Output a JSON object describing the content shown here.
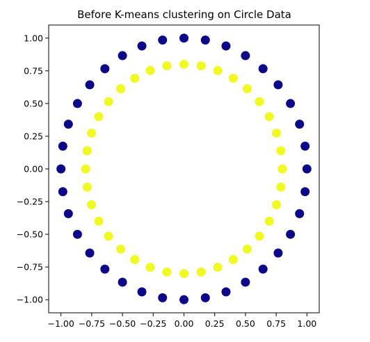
{
  "chart_data": {
    "type": "scatter",
    "title": "Before K-means clustering on Circle Data",
    "xlabel": "",
    "ylabel": "",
    "xlim": [
      -1.1,
      1.1
    ],
    "ylim": [
      -1.1,
      1.1
    ],
    "xticks": [
      -1.0,
      -0.75,
      -0.5,
      -0.25,
      0.0,
      0.25,
      0.5,
      0.75,
      1.0
    ],
    "xtick_labels": [
      "−1.00",
      "−0.75",
      "−0.50",
      "−0.25",
      "0.00",
      "0.25",
      "0.50",
      "0.75",
      "1.00"
    ],
    "yticks": [
      1.0,
      0.75,
      0.5,
      0.25,
      0.0,
      -0.25,
      -0.5,
      -0.75,
      -1.0
    ],
    "ytick_labels": [
      "1.00",
      "0.75",
      "0.50",
      "0.25",
      "0.00",
      "−0.25",
      "−0.50",
      "−0.75",
      "−1.00"
    ],
    "grid": false,
    "legend": "none",
    "series": [
      {
        "color": "#0d0887",
        "points": [
          [
            1.0,
            0.0
          ],
          [
            0.985,
            0.174
          ],
          [
            0.94,
            0.342
          ],
          [
            0.866,
            0.5
          ],
          [
            0.766,
            0.643
          ],
          [
            0.643,
            0.766
          ],
          [
            0.5,
            0.866
          ],
          [
            0.342,
            0.94
          ],
          [
            0.174,
            0.985
          ],
          [
            0.0,
            1.0
          ],
          [
            -0.174,
            0.985
          ],
          [
            -0.342,
            0.94
          ],
          [
            -0.5,
            0.866
          ],
          [
            -0.643,
            0.766
          ],
          [
            -0.766,
            0.643
          ],
          [
            -0.866,
            0.5
          ],
          [
            -0.94,
            0.342
          ],
          [
            -0.985,
            0.174
          ],
          [
            -1.0,
            0.0
          ],
          [
            -0.985,
            -0.174
          ],
          [
            -0.94,
            -0.342
          ],
          [
            -0.866,
            -0.5
          ],
          [
            -0.766,
            -0.643
          ],
          [
            -0.643,
            -0.766
          ],
          [
            -0.5,
            -0.866
          ],
          [
            -0.342,
            -0.94
          ],
          [
            -0.174,
            -0.985
          ],
          [
            0.0,
            -1.0
          ],
          [
            0.174,
            -0.985
          ],
          [
            0.342,
            -0.94
          ],
          [
            0.5,
            -0.866
          ],
          [
            0.643,
            -0.766
          ],
          [
            0.766,
            -0.643
          ],
          [
            0.866,
            -0.5
          ],
          [
            0.94,
            -0.342
          ],
          [
            0.985,
            -0.174
          ]
        ]
      },
      {
        "color": "#f0f921",
        "points": [
          [
            0.8,
            0.0
          ],
          [
            0.788,
            0.139
          ],
          [
            0.752,
            0.274
          ],
          [
            0.693,
            0.4
          ],
          [
            0.613,
            0.514
          ],
          [
            0.514,
            0.613
          ],
          [
            0.4,
            0.693
          ],
          [
            0.274,
            0.752
          ],
          [
            0.139,
            0.788
          ],
          [
            0.0,
            0.8
          ],
          [
            -0.139,
            0.788
          ],
          [
            -0.274,
            0.752
          ],
          [
            -0.4,
            0.693
          ],
          [
            -0.514,
            0.613
          ],
          [
            -0.613,
            0.514
          ],
          [
            -0.693,
            0.4
          ],
          [
            -0.752,
            0.274
          ],
          [
            -0.788,
            0.139
          ],
          [
            -0.8,
            0.0
          ],
          [
            -0.788,
            -0.139
          ],
          [
            -0.752,
            -0.274
          ],
          [
            -0.693,
            -0.4
          ],
          [
            -0.613,
            -0.514
          ],
          [
            -0.514,
            -0.613
          ],
          [
            -0.4,
            -0.693
          ],
          [
            -0.274,
            -0.752
          ],
          [
            -0.139,
            -0.788
          ],
          [
            0.0,
            -0.8
          ],
          [
            0.139,
            -0.788
          ],
          [
            0.274,
            -0.752
          ],
          [
            0.4,
            -0.693
          ],
          [
            0.514,
            -0.613
          ],
          [
            0.613,
            -0.514
          ],
          [
            0.693,
            -0.4
          ],
          [
            0.752,
            -0.274
          ],
          [
            0.788,
            -0.139
          ]
        ]
      }
    ]
  }
}
